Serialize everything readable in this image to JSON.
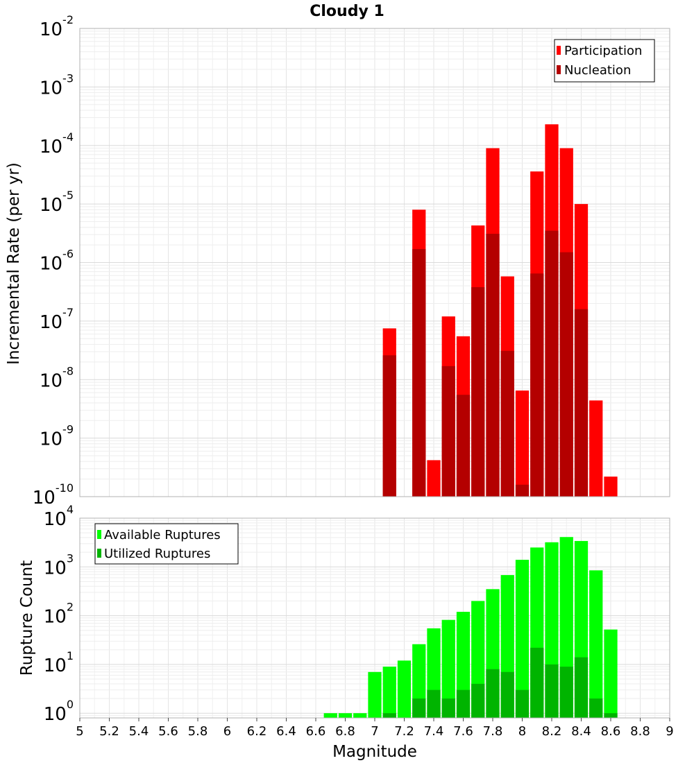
{
  "chart_data": [
    {
      "type": "bar",
      "panel": "rate",
      "title": "Cloudy 1",
      "xlabel": "Magnitude",
      "ylabel": "Incremental Rate (per yr)",
      "y_scale": "log",
      "ylim": [
        1e-10,
        0.01
      ],
      "xlim": [
        5,
        9
      ],
      "bin_width": 0.1,
      "legend_position": "top-right",
      "series": [
        {
          "name": "Participation",
          "color": "#ff0000",
          "points": [
            {
              "x": 7.1,
              "y": 7.5e-08
            },
            {
              "x": 7.3,
              "y": 8e-06
            },
            {
              "x": 7.4,
              "y": 4.2e-10
            },
            {
              "x": 7.5,
              "y": 1.2e-07
            },
            {
              "x": 7.6,
              "y": 5.5e-08
            },
            {
              "x": 7.7,
              "y": 4.3e-06
            },
            {
              "x": 7.8,
              "y": 9e-05
            },
            {
              "x": 7.9,
              "y": 5.8e-07
            },
            {
              "x": 8.0,
              "y": 6.5e-09
            },
            {
              "x": 8.1,
              "y": 3.6e-05
            },
            {
              "x": 8.2,
              "y": 0.00023
            },
            {
              "x": 8.3,
              "y": 9e-05
            },
            {
              "x": 8.4,
              "y": 1e-05
            },
            {
              "x": 8.5,
              "y": 4.4e-09
            },
            {
              "x": 8.6,
              "y": 2.2e-10
            }
          ]
        },
        {
          "name": "Nucleation",
          "color": "#b40000",
          "points": [
            {
              "x": 7.1,
              "y": 2.6e-08
            },
            {
              "x": 7.3,
              "y": 1.7e-06
            },
            {
              "x": 7.5,
              "y": 1.7e-08
            },
            {
              "x": 7.6,
              "y": 5.5e-09
            },
            {
              "x": 7.7,
              "y": 3.8e-07
            },
            {
              "x": 7.8,
              "y": 3.1e-06
            },
            {
              "x": 7.9,
              "y": 3.1e-08
            },
            {
              "x": 8.0,
              "y": 1.6e-10
            },
            {
              "x": 8.1,
              "y": 6.5e-07
            },
            {
              "x": 8.2,
              "y": 3.5e-06
            },
            {
              "x": 8.3,
              "y": 1.5e-06
            },
            {
              "x": 8.4,
              "y": 1.6e-07
            }
          ]
        }
      ]
    },
    {
      "type": "bar",
      "panel": "count",
      "xlabel": "Magnitude",
      "ylabel": "Rupture Count",
      "y_scale": "log",
      "ylim": [
        0.8,
        10000
      ],
      "xlim": [
        5,
        9
      ],
      "bin_width": 0.1,
      "legend_position": "top-left",
      "x_ticks": [
        "5",
        "5.2",
        "5.4",
        "5.6",
        "5.8",
        "6",
        "6.2",
        "6.4",
        "6.6",
        "6.8",
        "7",
        "7.2",
        "7.4",
        "7.6",
        "7.8",
        "8",
        "8.2",
        "8.4",
        "8.6",
        "8.8",
        "9"
      ],
      "series": [
        {
          "name": "Available Ruptures",
          "color": "#00ff00",
          "points": [
            {
              "x": 6.7,
              "y": 1
            },
            {
              "x": 6.8,
              "y": 1
            },
            {
              "x": 6.9,
              "y": 1
            },
            {
              "x": 7.0,
              "y": 7
            },
            {
              "x": 7.1,
              "y": 9
            },
            {
              "x": 7.2,
              "y": 12
            },
            {
              "x": 7.3,
              "y": 26
            },
            {
              "x": 7.4,
              "y": 55
            },
            {
              "x": 7.5,
              "y": 82
            },
            {
              "x": 7.6,
              "y": 120
            },
            {
              "x": 7.7,
              "y": 200
            },
            {
              "x": 7.8,
              "y": 350
            },
            {
              "x": 7.9,
              "y": 680
            },
            {
              "x": 8.0,
              "y": 1400
            },
            {
              "x": 8.1,
              "y": 2500
            },
            {
              "x": 8.2,
              "y": 3200
            },
            {
              "x": 8.3,
              "y": 4100
            },
            {
              "x": 8.4,
              "y": 3400
            },
            {
              "x": 8.5,
              "y": 850
            },
            {
              "x": 8.6,
              "y": 52
            }
          ]
        },
        {
          "name": "Utilized Ruptures",
          "color": "#00b400",
          "points": [
            {
              "x": 7.1,
              "y": 1
            },
            {
              "x": 7.3,
              "y": 2
            },
            {
              "x": 7.4,
              "y": 3
            },
            {
              "x": 7.5,
              "y": 2
            },
            {
              "x": 7.6,
              "y": 3
            },
            {
              "x": 7.7,
              "y": 4
            },
            {
              "x": 7.8,
              "y": 8
            },
            {
              "x": 7.9,
              "y": 7
            },
            {
              "x": 8.0,
              "y": 3
            },
            {
              "x": 8.1,
              "y": 22
            },
            {
              "x": 8.2,
              "y": 10
            },
            {
              "x": 8.3,
              "y": 9
            },
            {
              "x": 8.4,
              "y": 14
            },
            {
              "x": 8.5,
              "y": 2
            },
            {
              "x": 8.6,
              "y": 1
            }
          ]
        }
      ]
    }
  ]
}
